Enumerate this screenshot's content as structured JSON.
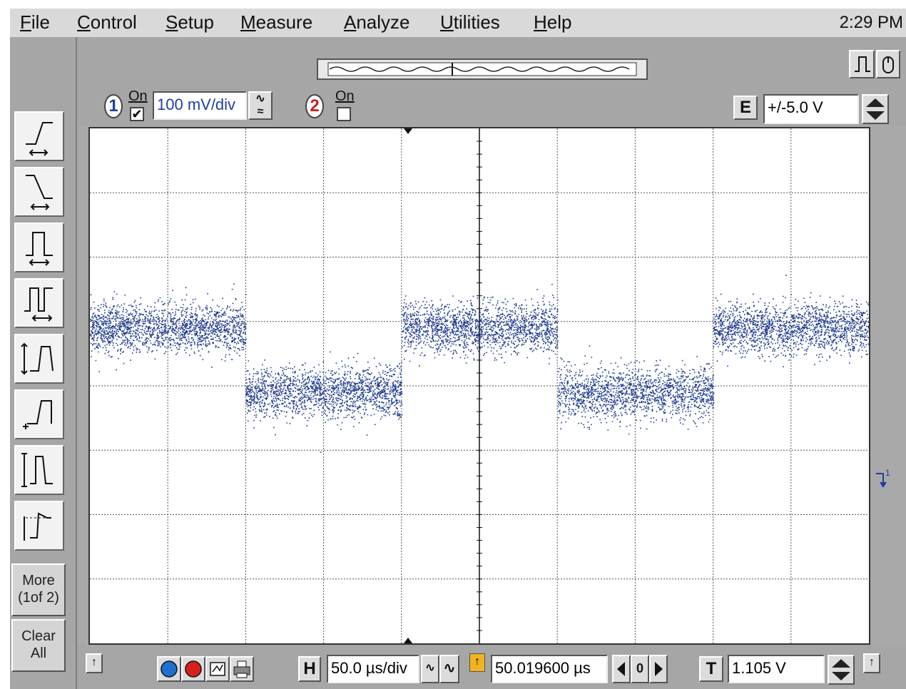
{
  "menu": {
    "items": [
      {
        "label": "File",
        "ul": "F",
        "rest": "ile"
      },
      {
        "label": "Control",
        "ul": "C",
        "rest": "ontrol"
      },
      {
        "label": "Setup",
        "ul": "S",
        "rest": "etup"
      },
      {
        "label": "Measure",
        "ul": "M",
        "rest": "easure"
      },
      {
        "label": "Analyze",
        "ul": "A",
        "rest": "nalyze"
      },
      {
        "label": "Utilities",
        "ul": "U",
        "rest": "tilities"
      },
      {
        "label": "Help",
        "ul": "H",
        "rest": "elp"
      }
    ],
    "clock": "2:29 PM"
  },
  "channels": {
    "ch1": {
      "number": "1",
      "on_label": "On",
      "checked": true,
      "scale": "100 mV/div",
      "color": "#1f3fa0"
    },
    "ch2": {
      "number": "2",
      "on_label": "On",
      "checked": false,
      "color": "#cc2222"
    }
  },
  "external": {
    "label": "E",
    "range": "+/-5.0 V"
  },
  "sidebar": {
    "icons": [
      "rising-edge-icon",
      "falling-edge-icon",
      "pulse-width-icon",
      "period-icon",
      "amplitude-icon",
      "base-level-icon",
      "peak-to-peak-icon",
      "overshoot-icon"
    ],
    "more_line1": "More",
    "more_line2": "(1of 2)",
    "clear_line1": "Clear",
    "clear_line2": "All"
  },
  "timebase": {
    "label": "H",
    "scale": "50.0 µs/div",
    "position": "50.019600 µs",
    "delay_ref": "0"
  },
  "trigger": {
    "label": "T",
    "level": "1.105 V"
  },
  "trace": {
    "color": "#1f3a8f",
    "high_level_div": 0.9,
    "low_level_div": -0.1,
    "noise_div": 0.35,
    "segments": [
      "high",
      "low",
      "high",
      "low",
      "high"
    ]
  },
  "marker": {
    "channel": "1"
  }
}
